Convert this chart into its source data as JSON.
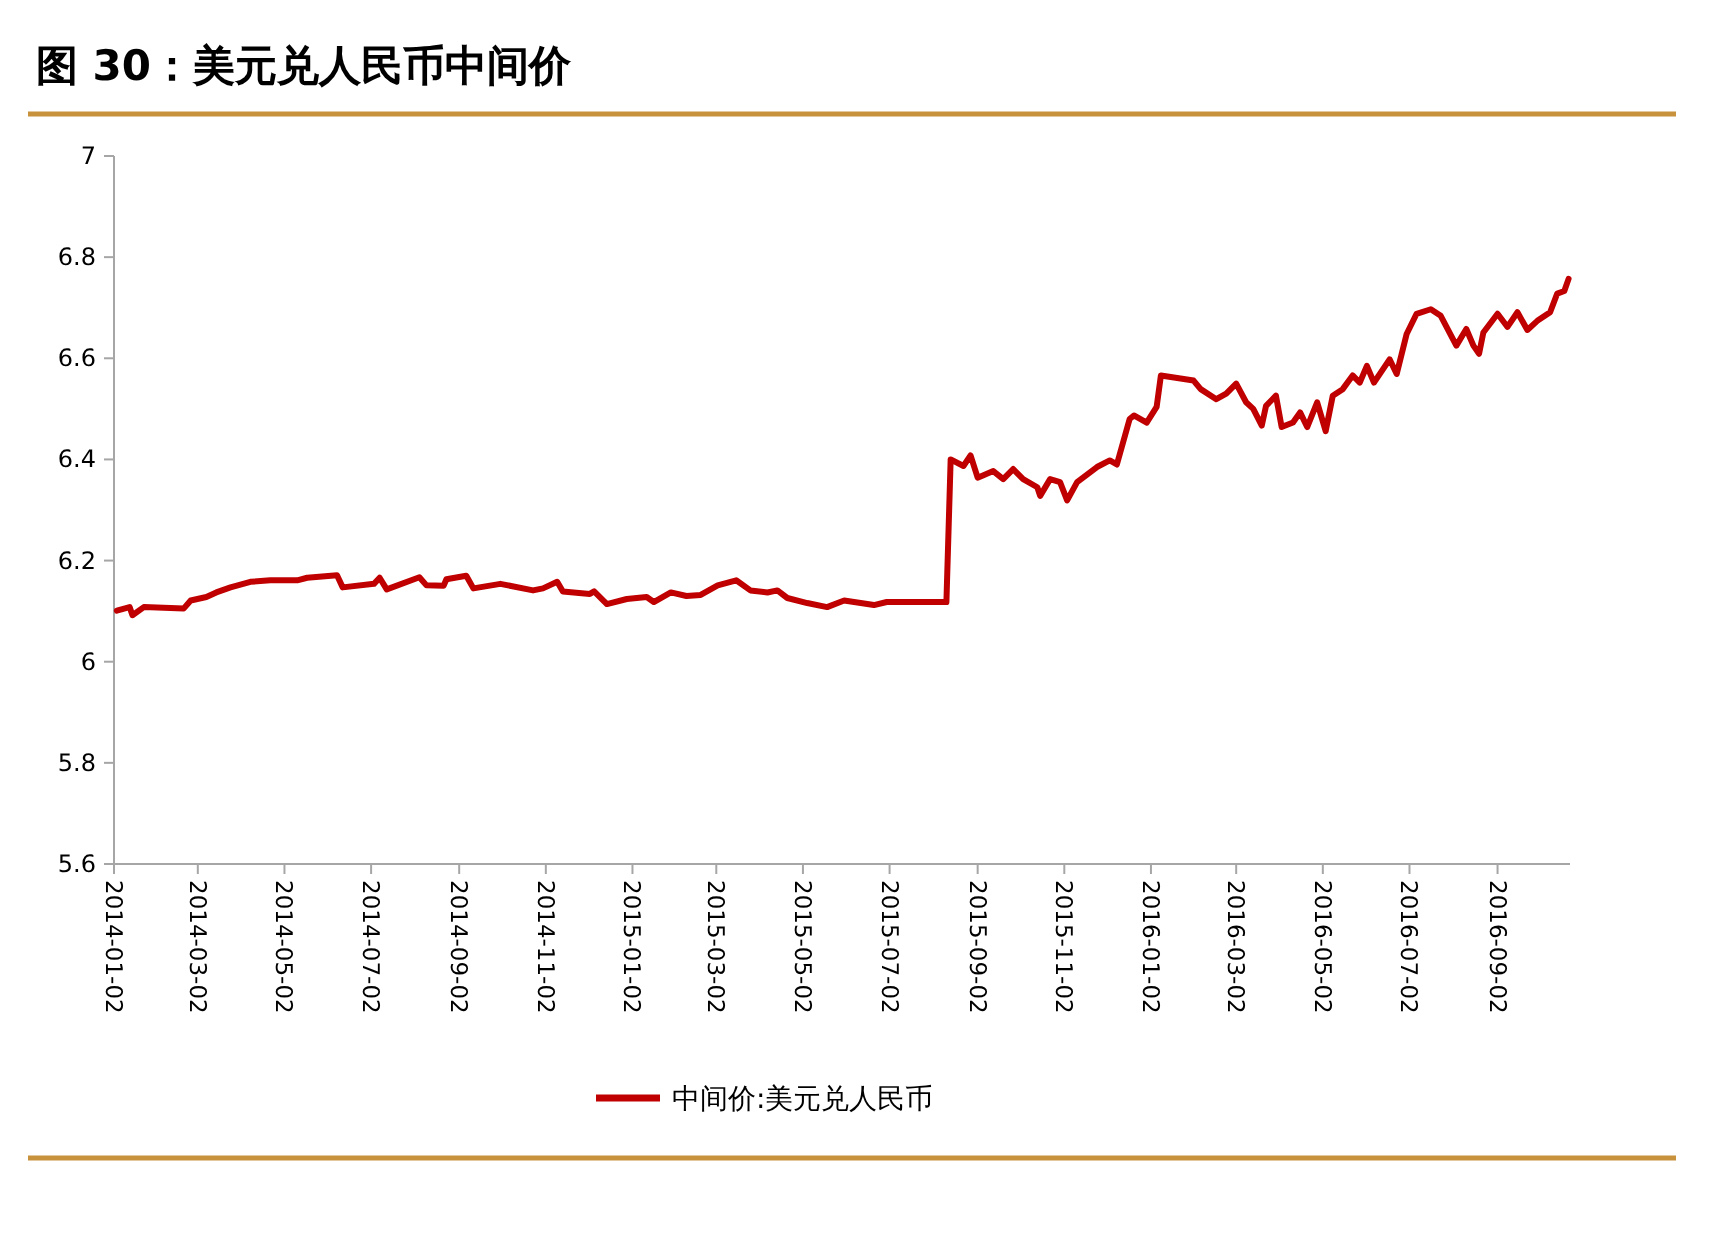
{
  "chart_data": {
    "type": "line",
    "title": "图 30：美元兑人民币中间价",
    "legend": "bottom",
    "marker": "none",
    "line_style": "solid",
    "xlim": [
      "2014-01-02",
      "2016-10-23"
    ],
    "xticks": [
      "2014-01-02",
      "2014-03-02",
      "2014-05-02",
      "2014-07-02",
      "2014-09-02",
      "2014-11-02",
      "2015-01-02",
      "2015-03-02",
      "2015-05-02",
      "2015-07-02",
      "2015-09-02",
      "2015-11-02",
      "2016-01-02",
      "2016-03-02",
      "2016-05-02",
      "2016-07-02",
      "2016-09-02"
    ],
    "ylim": [
      5.6,
      7
    ],
    "yticks": [
      5.6,
      5.8,
      6,
      6.2,
      6.4,
      6.6,
      6.8,
      7
    ],
    "series": [
      {
        "name": "中间价:美元兑人民币",
        "color": "#c00000",
        "x": [
          "2014-01-04",
          "2014-01-13",
          "2014-01-15",
          "2014-01-23",
          "2014-02-20",
          "2014-02-25",
          "2014-03-08",
          "2014-03-15",
          "2014-03-25",
          "2014-04-08",
          "2014-04-22",
          "2014-05-11",
          "2014-05-18",
          "2014-06-08",
          "2014-06-12",
          "2014-07-04",
          "2014-07-08",
          "2014-07-13",
          "2014-08-05",
          "2014-08-10",
          "2014-08-22",
          "2014-08-24",
          "2014-09-07",
          "2014-09-12",
          "2014-10-01",
          "2014-10-24",
          "2014-10-31",
          "2014-11-10",
          "2014-11-14",
          "2014-12-03",
          "2014-12-06",
          "2014-12-15",
          "2014-12-29",
          "2015-01-12",
          "2015-01-17",
          "2015-01-29",
          "2015-02-09",
          "2015-02-19",
          "2015-03-03",
          "2015-03-16",
          "2015-03-26",
          "2015-04-07",
          "2015-04-14",
          "2015-04-21",
          "2015-05-05",
          "2015-05-19",
          "2015-05-31",
          "2015-06-21",
          "2015-06-30",
          "2015-08-11",
          "2015-08-14",
          "2015-08-23",
          "2015-08-28",
          "2015-09-02",
          "2015-09-13",
          "2015-09-20",
          "2015-09-27",
          "2015-10-04",
          "2015-10-14",
          "2015-10-16",
          "2015-10-23",
          "2015-10-30",
          "2015-11-04",
          "2015-11-11",
          "2015-11-25",
          "2015-12-04",
          "2015-12-09",
          "2015-12-18",
          "2015-12-21",
          "2015-12-30",
          "2016-01-06",
          "2016-01-09",
          "2016-02-01",
          "2016-02-06",
          "2016-02-17",
          "2016-02-24",
          "2016-03-02",
          "2016-03-09",
          "2016-03-14",
          "2016-03-20",
          "2016-03-23",
          "2016-03-30",
          "2016-04-03",
          "2016-04-11",
          "2016-04-16",
          "2016-04-21",
          "2016-04-28",
          "2016-05-04",
          "2016-05-09",
          "2016-05-16",
          "2016-05-23",
          "2016-05-28",
          "2016-06-02",
          "2016-06-07",
          "2016-06-18",
          "2016-06-23",
          "2016-06-30",
          "2016-07-07",
          "2016-07-17",
          "2016-07-24",
          "2016-08-04",
          "2016-08-11",
          "2016-08-16",
          "2016-08-20",
          "2016-08-23",
          "2016-09-02",
          "2016-09-09",
          "2016-09-16",
          "2016-09-23",
          "2016-09-30",
          "2016-10-09",
          "2016-10-14",
          "2016-10-19",
          "2016-10-22"
        ],
        "values": [
          6.101,
          6.108,
          6.092,
          6.108,
          6.105,
          6.121,
          6.128,
          6.137,
          6.147,
          6.158,
          6.161,
          6.161,
          6.166,
          6.171,
          6.147,
          6.154,
          6.166,
          6.143,
          6.167,
          6.151,
          6.15,
          6.163,
          6.17,
          6.145,
          6.154,
          6.141,
          6.145,
          6.158,
          6.139,
          6.134,
          6.139,
          6.114,
          6.124,
          6.128,
          6.118,
          6.137,
          6.13,
          6.132,
          6.151,
          6.161,
          6.141,
          6.137,
          6.141,
          6.126,
          6.116,
          6.108,
          6.121,
          6.112,
          6.118,
          6.118,
          6.4,
          6.387,
          6.408,
          6.364,
          6.377,
          6.361,
          6.381,
          6.361,
          6.345,
          6.328,
          6.361,
          6.355,
          6.319,
          6.355,
          6.385,
          6.398,
          6.39,
          6.48,
          6.487,
          6.473,
          6.504,
          6.566,
          6.556,
          6.539,
          6.519,
          6.53,
          6.55,
          6.513,
          6.5,
          6.467,
          6.506,
          6.526,
          6.464,
          6.473,
          6.493,
          6.464,
          6.513,
          6.456,
          6.526,
          6.539,
          6.566,
          6.552,
          6.585,
          6.552,
          6.598,
          6.569,
          6.648,
          6.688,
          6.697,
          6.684,
          6.625,
          6.658,
          6.625,
          6.609,
          6.651,
          6.688,
          6.662,
          6.691,
          6.656,
          6.674,
          6.691,
          6.728,
          6.733,
          6.757
        ]
      }
    ]
  }
}
